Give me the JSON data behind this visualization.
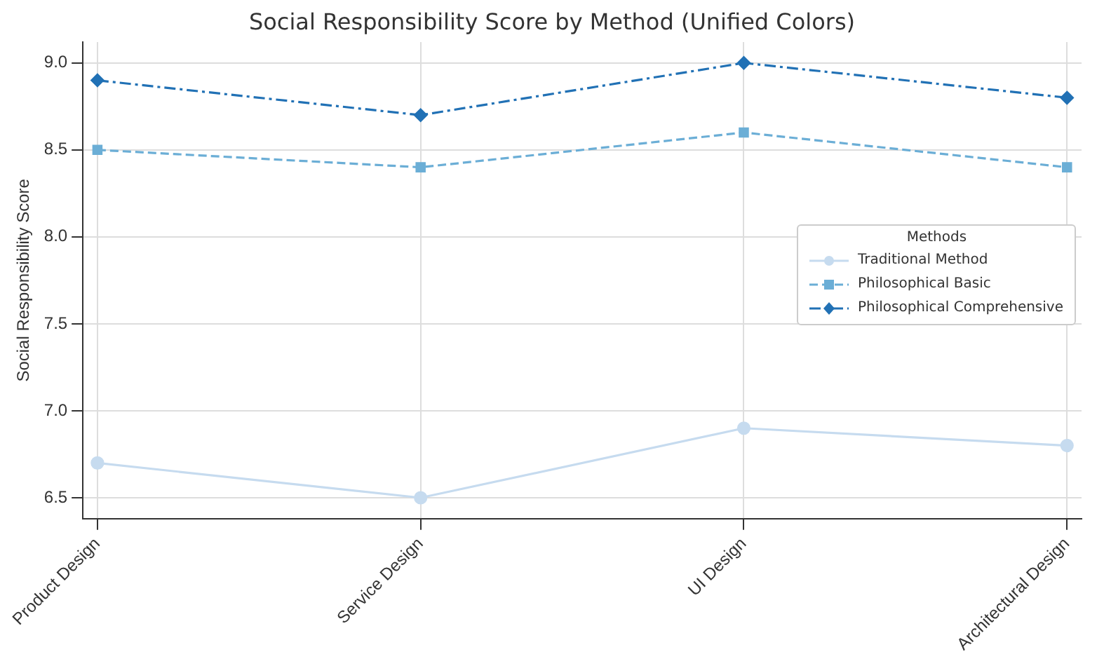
{
  "chart_data": {
    "type": "line",
    "title": "Social Responsibility Score by Method (Unified Colors)",
    "ylabel": "Social Responsibility Score",
    "legend_title": "Methods",
    "categories": [
      "Product Design",
      "Service Design",
      "UI Design",
      "Architectural Design"
    ],
    "series": [
      {
        "name": "Traditional Method",
        "color": "#c6dbef",
        "values": [
          6.7,
          6.5,
          6.9,
          6.8
        ],
        "marker": "circle",
        "line_style": "solid"
      },
      {
        "name": "Philosophical Basic",
        "color": "#6baed6",
        "values": [
          8.5,
          8.4,
          8.6,
          8.4
        ],
        "marker": "square",
        "line_style": "dashed"
      },
      {
        "name": "Philosophical Comprehensive",
        "color": "#2171b5",
        "values": [
          8.9,
          8.7,
          9.0,
          8.8
        ],
        "marker": "diamond",
        "line_style": "dashdot"
      }
    ],
    "ylim": [
      6.38,
      9.12
    ],
    "yticks": [
      6.5,
      {
        "value": 7,
        "label": "7.0"
      },
      7.5,
      {
        "value": 8,
        "label": "8.0"
      },
      8.5,
      {
        "value": 9,
        "label": "9.0"
      }
    ],
    "grid": true,
    "legend": "center right"
  }
}
